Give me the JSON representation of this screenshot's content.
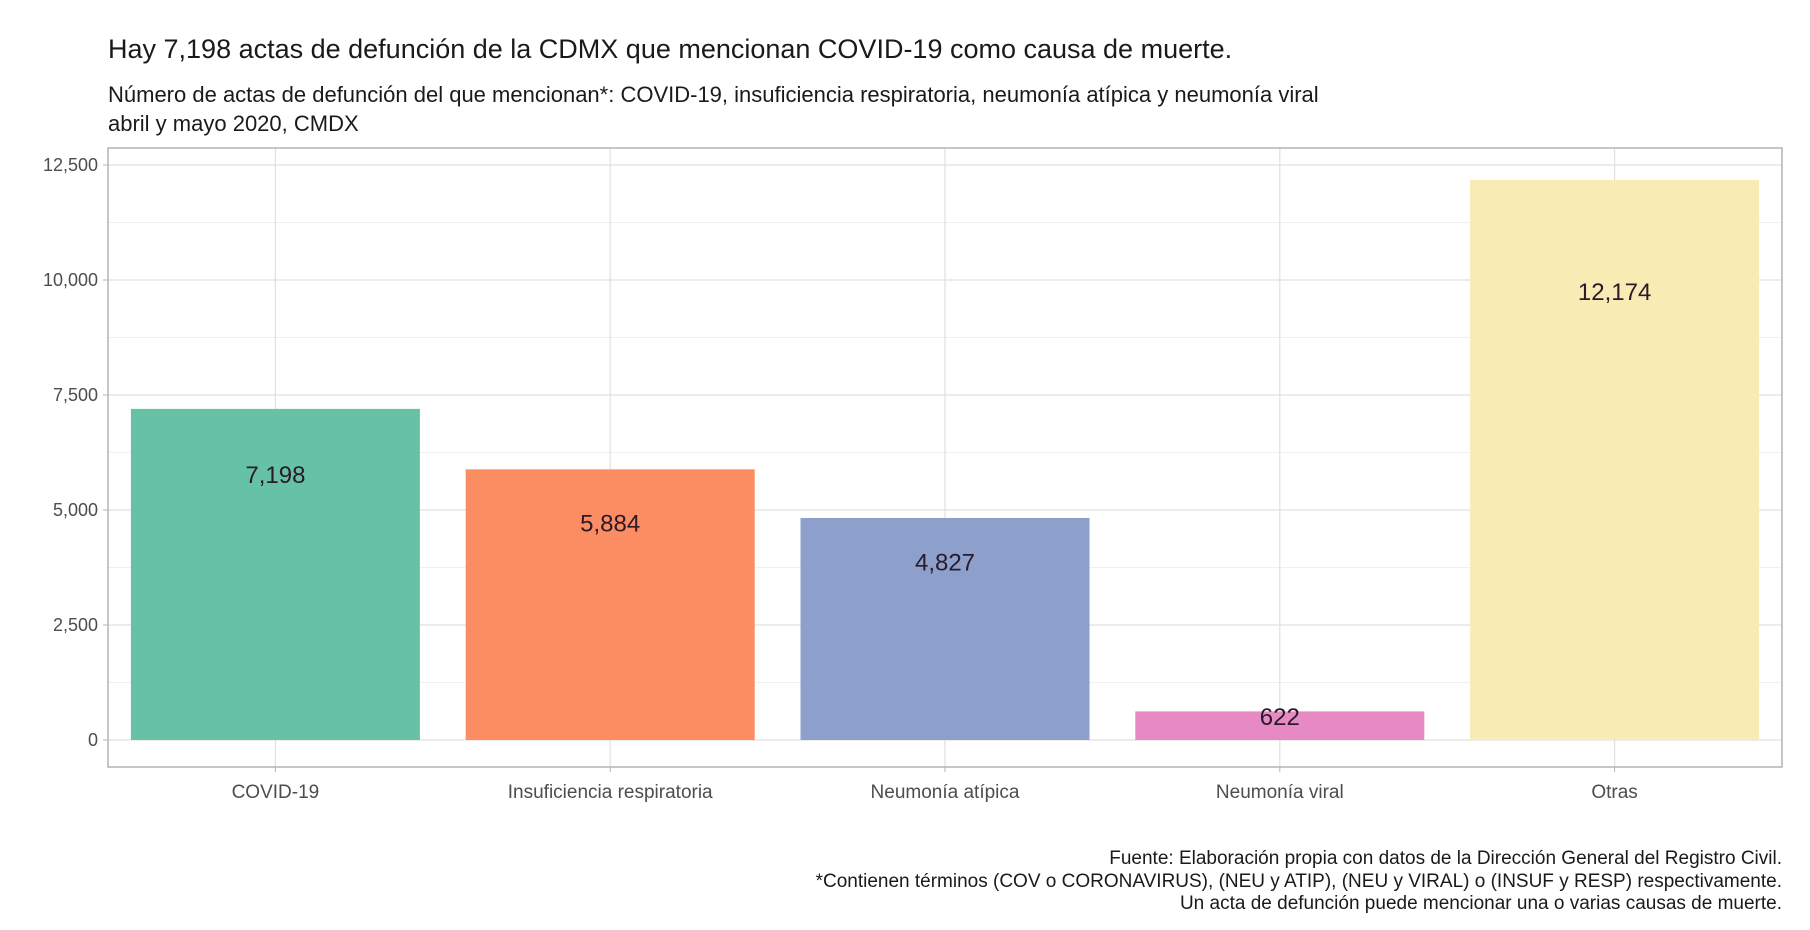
{
  "chart_data": {
    "type": "bar",
    "title": "Hay 7,198 actas de defunción de la CDMX que mencionan COVID-19 como causa de muerte.",
    "subtitle": [
      "Número de actas de defunción del que mencionan*: COVID-19, insuficiencia respiratoria, neumonía atípica y neumonía viral",
      "abril y mayo 2020, CMDX"
    ],
    "categories": [
      "COVID-19",
      "Insuficiencia respiratoria",
      "Neumonía atípica",
      "Neumonía viral",
      "Otras"
    ],
    "values": [
      7198,
      5884,
      4827,
      622,
      12174
    ],
    "data_labels": [
      "7,198",
      "5,884",
      "4,827",
      "622",
      "12,174"
    ],
    "colors": [
      "#66c2a5",
      "#fc8d62",
      "#8da0cb",
      "#e78ac3",
      "#f8ecb4"
    ],
    "xlabel": "",
    "ylabel": "",
    "ylim": [
      -600,
      12900
    ],
    "yticks": [
      0,
      2500,
      5000,
      7500,
      10000,
      12500
    ],
    "ytick_labels": [
      "0",
      "2,500",
      "5,000",
      "7,500",
      "10,000",
      "12,500"
    ],
    "grid": true,
    "legend": "none",
    "caption": [
      "Fuente: Elaboración propia con datos de la Dirección General del Registro Civil.",
      "*Contienen términos (COV o CORONAVIRUS), (NEU y ATIP), (NEU y VIRAL) o (INSUF y RESP) respectivamente.",
      "Un acta de defunción puede mencionar una o varias causas de muerte."
    ]
  }
}
